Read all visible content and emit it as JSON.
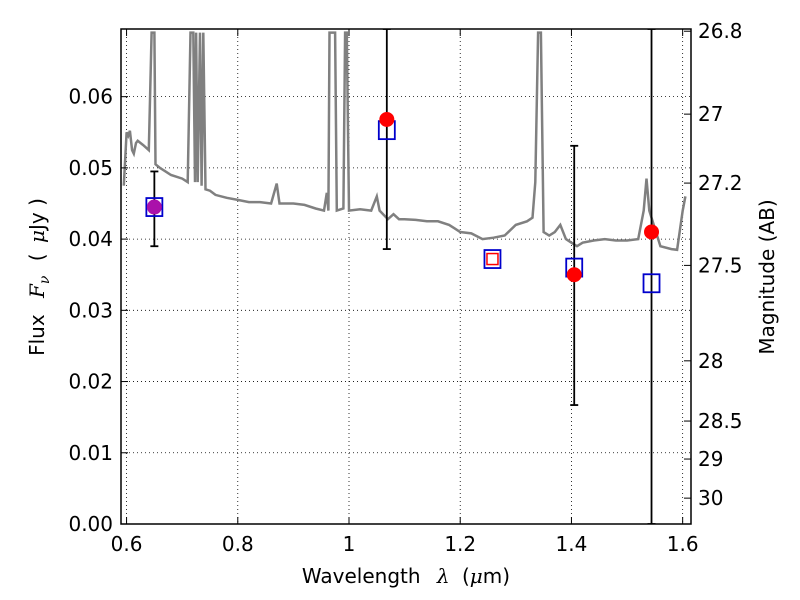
{
  "chart_data": {
    "type": "scatter",
    "title": "",
    "xlabel": {
      "prefix": "Wavelength",
      "symbol": "λ",
      "unit_open": "(",
      "unit_mu": "μ",
      "unit_rest": "m)"
    },
    "ylabel": {
      "prefix": "Flux",
      "symbol": "F",
      "sub": "ν",
      "unit_open": "(",
      "unit_mu": "μ",
      "unit_rest": "Jy )"
    },
    "ylabel_right": "Magnitude (AB)",
    "xlim": [
      0.59,
      1.615
    ],
    "ylim": [
      0.0,
      0.0695
    ],
    "grid": true,
    "x_ticks": [
      {
        "value": 0.6,
        "label": "0.6"
      },
      {
        "value": 0.8,
        "label": "0.8"
      },
      {
        "value": 1.0,
        "label": "1"
      },
      {
        "value": 1.2,
        "label": "1.2"
      },
      {
        "value": 1.4,
        "label": "1.4"
      },
      {
        "value": 1.6,
        "label": "1.6"
      }
    ],
    "y_ticks": [
      {
        "value": 0.0,
        "label": "0.00"
      },
      {
        "value": 0.01,
        "label": "0.01"
      },
      {
        "value": 0.02,
        "label": "0.02"
      },
      {
        "value": 0.03,
        "label": "0.03"
      },
      {
        "value": 0.04,
        "label": "0.04"
      },
      {
        "value": 0.05,
        "label": "0.05"
      },
      {
        "value": 0.06,
        "label": "0.06"
      }
    ],
    "right_ticks": [
      {
        "mag": 26.8,
        "label": "26.8"
      },
      {
        "mag": 27.0,
        "label": "27"
      },
      {
        "mag": 27.2,
        "label": "27.2"
      },
      {
        "mag": 27.5,
        "label": "27.5"
      },
      {
        "mag": 28.0,
        "label": "28"
      },
      {
        "mag": 28.5,
        "label": "28.5"
      },
      {
        "mag": 29.0,
        "label": "29"
      },
      {
        "mag": 30.0,
        "label": "30"
      }
    ],
    "series": [
      {
        "kind": "spectrum_model",
        "color": "#808080",
        "points": [
          [
            0.595,
            0.0475
          ],
          [
            0.6,
            0.055
          ],
          [
            0.603,
            0.0545
          ],
          [
            0.606,
            0.0552
          ],
          [
            0.61,
            0.0525
          ],
          [
            0.613,
            0.052
          ],
          [
            0.617,
            0.0535
          ],
          [
            0.62,
            0.0538
          ],
          [
            0.63,
            0.0532
          ],
          [
            0.64,
            0.0525
          ],
          [
            0.645,
            0.069
          ],
          [
            0.65,
            0.069
          ],
          [
            0.652,
            0.0505
          ],
          [
            0.66,
            0.05
          ],
          [
            0.67,
            0.0495
          ],
          [
            0.68,
            0.049
          ],
          [
            0.7,
            0.0485
          ],
          [
            0.71,
            0.048
          ],
          [
            0.715,
            0.069
          ],
          [
            0.72,
            0.069
          ],
          [
            0.723,
            0.048
          ],
          [
            0.725,
            0.069
          ],
          [
            0.728,
            0.048
          ],
          [
            0.732,
            0.069
          ],
          [
            0.735,
            0.0475
          ],
          [
            0.738,
            0.069
          ],
          [
            0.742,
            0.047
          ],
          [
            0.75,
            0.0468
          ],
          [
            0.76,
            0.0462
          ],
          [
            0.78,
            0.0458
          ],
          [
            0.8,
            0.0455
          ],
          [
            0.82,
            0.0452
          ],
          [
            0.84,
            0.0452
          ],
          [
            0.86,
            0.045
          ],
          [
            0.87,
            0.0478
          ],
          [
            0.875,
            0.045
          ],
          [
            0.9,
            0.045
          ],
          [
            0.92,
            0.0448
          ],
          [
            0.94,
            0.0443
          ],
          [
            0.955,
            0.044
          ],
          [
            0.96,
            0.0465
          ],
          [
            0.963,
            0.044
          ],
          [
            0.965,
            0.069
          ],
          [
            0.975,
            0.069
          ],
          [
            0.978,
            0.044
          ],
          [
            0.99,
            0.0443
          ],
          [
            0.993,
            0.069
          ],
          [
            0.996,
            0.069
          ],
          [
            1.0,
            0.044
          ],
          [
            1.02,
            0.0442
          ],
          [
            1.04,
            0.044
          ],
          [
            1.05,
            0.046
          ],
          [
            1.055,
            0.044
          ],
          [
            1.07,
            0.0428
          ],
          [
            1.08,
            0.0435
          ],
          [
            1.09,
            0.0428
          ],
          [
            1.1,
            0.0428
          ],
          [
            1.12,
            0.0427
          ],
          [
            1.14,
            0.0425
          ],
          [
            1.16,
            0.0425
          ],
          [
            1.18,
            0.042
          ],
          [
            1.19,
            0.0415
          ],
          [
            1.2,
            0.041
          ],
          [
            1.22,
            0.0408
          ],
          [
            1.24,
            0.04
          ],
          [
            1.26,
            0.0402
          ],
          [
            1.28,
            0.0405
          ],
          [
            1.3,
            0.042
          ],
          [
            1.32,
            0.0425
          ],
          [
            1.33,
            0.043
          ],
          [
            1.335,
            0.048
          ],
          [
            1.34,
            0.069
          ],
          [
            1.345,
            0.069
          ],
          [
            1.35,
            0.041
          ],
          [
            1.36,
            0.0405
          ],
          [
            1.37,
            0.041
          ],
          [
            1.38,
            0.042
          ],
          [
            1.39,
            0.04
          ],
          [
            1.4,
            0.0395
          ],
          [
            1.41,
            0.039
          ],
          [
            1.42,
            0.0395
          ],
          [
            1.44,
            0.0398
          ],
          [
            1.46,
            0.04
          ],
          [
            1.48,
            0.0398
          ],
          [
            1.5,
            0.0398
          ],
          [
            1.52,
            0.04
          ],
          [
            1.53,
            0.044
          ],
          [
            1.535,
            0.0485
          ],
          [
            1.54,
            0.044
          ],
          [
            1.56,
            0.039
          ],
          [
            1.58,
            0.0386
          ],
          [
            1.59,
            0.0385
          ],
          [
            1.6,
            0.044
          ],
          [
            1.605,
            0.046
          ]
        ]
      },
      {
        "kind": "model_photometry",
        "marker": "open-square",
        "color": "#0000cc",
        "points": [
          [
            0.65,
            0.0445
          ],
          [
            1.068,
            0.0553
          ],
          [
            1.258,
            0.0372
          ],
          [
            1.405,
            0.036
          ],
          [
            1.544,
            0.0338
          ]
        ]
      },
      {
        "kind": "observed_flux",
        "marker": "filled-circle",
        "color": "#ff0000",
        "points": [
          [
            0.65,
            0.0445
          ],
          [
            1.068,
            0.0568
          ],
          [
            1.405,
            0.035
          ],
          [
            1.544,
            0.041
          ]
        ],
        "error_low": [
          0.039,
          0.0386,
          0.0167,
          0.0
        ],
        "error_high": [
          0.0495,
          0.0695,
          0.0531,
          0.0695
        ]
      },
      {
        "kind": "upper_limit",
        "marker": "open-square-small",
        "color": "#ff0000",
        "points": [
          [
            1.258,
            0.0372
          ]
        ]
      }
    ]
  }
}
